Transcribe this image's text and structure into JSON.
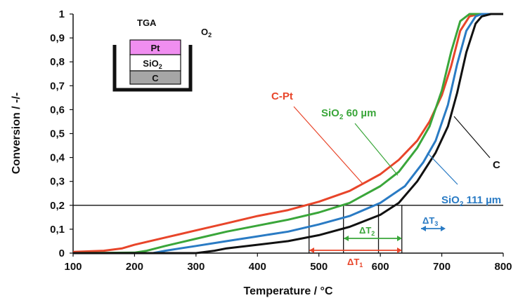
{
  "chart_data": {
    "type": "line",
    "xlabel": "Temperature / °C",
    "ylabel": "Conversion / -/-",
    "xlim": [
      100,
      800
    ],
    "ylim": [
      0,
      1
    ],
    "xticks": [
      "100",
      "200",
      "300",
      "400",
      "500",
      "600",
      "700",
      "800"
    ],
    "yticks": [
      "0",
      "0,1",
      "0,2",
      "0,3",
      "0,4",
      "0,5",
      "0,6",
      "0,7",
      "0,8",
      "0,9",
      "1"
    ],
    "series": [
      {
        "name": "C-Pt",
        "color": "#e8452a",
        "x": [
          100,
          150,
          180,
          200,
          250,
          300,
          350,
          400,
          450,
          500,
          550,
          600,
          630,
          660,
          680,
          700,
          715,
          730,
          745,
          760,
          780,
          800
        ],
        "y": [
          0.005,
          0.01,
          0.02,
          0.035,
          0.065,
          0.095,
          0.125,
          0.155,
          0.18,
          0.215,
          0.26,
          0.33,
          0.39,
          0.47,
          0.55,
          0.66,
          0.78,
          0.93,
          0.99,
          1.0,
          1.0,
          1.0
        ]
      },
      {
        "name": "SiO₂ 60 µm",
        "color": "#3aa63a",
        "x": [
          100,
          200,
          220,
          250,
          300,
          350,
          400,
          450,
          500,
          550,
          600,
          630,
          660,
          680,
          700,
          715,
          730,
          745,
          760,
          780,
          800
        ],
        "y": [
          0,
          0.002,
          0.01,
          0.03,
          0.06,
          0.09,
          0.115,
          0.14,
          0.17,
          0.21,
          0.28,
          0.34,
          0.44,
          0.53,
          0.68,
          0.84,
          0.97,
          1.0,
          1.0,
          1.0,
          1.0
        ]
      },
      {
        "name": "SiO₂ 111 µm",
        "color": "#2a7bc4",
        "x": [
          100,
          230,
          250,
          300,
          350,
          400,
          450,
          500,
          550,
          600,
          640,
          670,
          690,
          710,
          725,
          740,
          755,
          765,
          780,
          800
        ],
        "y": [
          0,
          0,
          0.01,
          0.03,
          0.05,
          0.07,
          0.09,
          0.12,
          0.155,
          0.21,
          0.28,
          0.38,
          0.47,
          0.62,
          0.79,
          0.93,
          0.99,
          1.0,
          1.0,
          1.0
        ]
      },
      {
        "name": "C",
        "color": "#111111",
        "x": [
          100,
          300,
          330,
          350,
          400,
          450,
          500,
          550,
          600,
          630,
          660,
          690,
          710,
          725,
          740,
          755,
          765,
          780,
          800
        ],
        "y": [
          0,
          0,
          0.01,
          0.02,
          0.035,
          0.05,
          0.075,
          0.11,
          0.16,
          0.21,
          0.3,
          0.42,
          0.53,
          0.67,
          0.84,
          0.96,
          0.99,
          1.0,
          1.0
        ]
      }
    ],
    "reference_line_y": 0.2,
    "vertical_markers": [
      484,
      540,
      597,
      635
    ],
    "annotations": {
      "delta_t1": {
        "base": "ΔT",
        "sub": "1",
        "color": "#e8452a"
      },
      "delta_t2": {
        "base": "ΔT",
        "sub": "2",
        "color": "#3aa63a"
      },
      "delta_t3": {
        "base": "ΔT",
        "sub": "3",
        "color": "#2a7bc4"
      }
    },
    "labels": {
      "c_pt": {
        "text": "C-Pt",
        "color": "#e8452a"
      },
      "sio2_60": {
        "base": "SiO",
        "sub": "2",
        "rest": " 60 µm",
        "color": "#3aa63a"
      },
      "sio2_111": {
        "base": "SiO",
        "sub": "2",
        "rest": " 111 µm",
        "color": "#2a7bc4"
      },
      "c": {
        "text": "C",
        "color": "#111111"
      }
    },
    "inset": {
      "title": "TGA",
      "gas_base": "O",
      "gas_sub": "2",
      "layer_pt": "Pt",
      "layer_sio2_base": "SiO",
      "layer_sio2_sub": "2",
      "layer_c": "C",
      "pt_color": "#f08ef0",
      "c_color": "#a6a6a6"
    }
  }
}
